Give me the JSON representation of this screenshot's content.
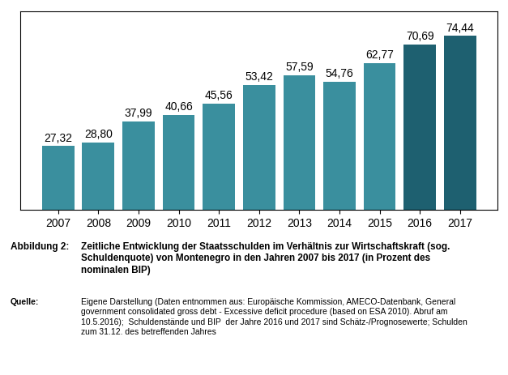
{
  "chart_data": {
    "type": "bar",
    "categories": [
      "2007",
      "2008",
      "2009",
      "2010",
      "2011",
      "2012",
      "2013",
      "2014",
      "2015",
      "2016",
      "2017"
    ],
    "values": [
      27.32,
      28.8,
      37.99,
      40.66,
      45.56,
      53.42,
      57.59,
      54.76,
      62.77,
      70.69,
      74.44
    ],
    "value_labels": [
      "27,32",
      "28,80",
      "37,99",
      "40,66",
      "45,56",
      "53,42",
      "57,59",
      "54,76",
      "62,77",
      "70,69",
      "74,44"
    ],
    "data_labels": true,
    "colors": [
      "#3a8f9e",
      "#3a8f9e",
      "#3a8f9e",
      "#3a8f9e",
      "#3a8f9e",
      "#3a8f9e",
      "#3a8f9e",
      "#3a8f9e",
      "#3a8f9e",
      "#1e6070",
      "#1e6070"
    ],
    "ylim": [
      0,
      85
    ],
    "yticks": [],
    "tick_labels": "x",
    "grid": false,
    "annotations": [
      "Abbildung 2:",
      "Zeitliche Entwicklung der Staatsschulden im Verhältnis zur Wirtschaftskraft (sog.\nSchuldenquote) von Montenegro in den Jahren 2007 bis 2017 (in Prozent des\nnominalen BIP)",
      "Quelle:",
      "Eigene Darstellung (Daten entnommen aus: Europäische Kommission, AMECO-Datenbank, General\ngovernment consolidated gross debt - Excessive deficit procedure (based on ESA 2010). Abruf am\n10.5.2016);  Schuldenstände und BIP  der Jahre 2016 und 2017 sind Schätz-/Prognosewerte; Schulden\nzum 31.12. des betreffenden Jahres"
    ]
  }
}
